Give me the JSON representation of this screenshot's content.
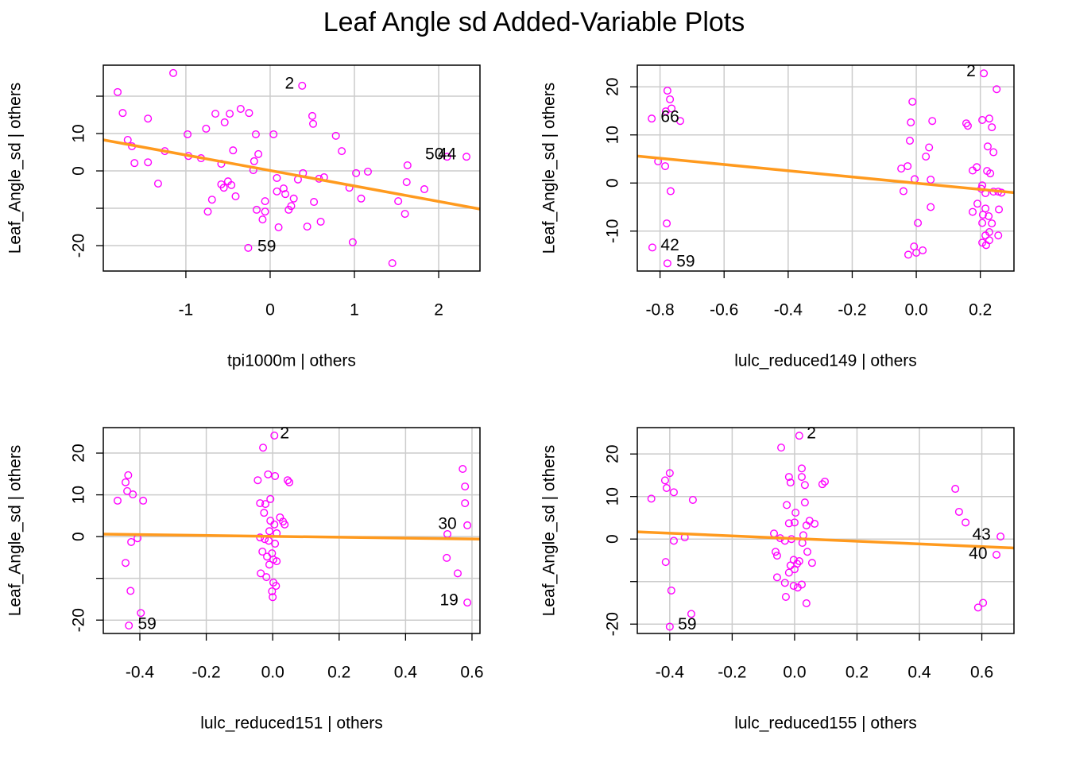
{
  "title": "Leaf Angle sd Added-Variable Plots",
  "chart_data": [
    {
      "type": "scatter",
      "xlabel": "tpi1000m | others",
      "ylabel": "Leaf_Angle_sd  | others",
      "color": "#ff00ff",
      "grid": true,
      "xlim": [
        -1.98,
        2.49
      ],
      "ylim": [
        -26.8,
        28.3
      ],
      "xticks": [
        -1,
        0,
        1,
        2
      ],
      "yticks": [
        -20,
        {
          "value": -10,
          "label": null
        },
        0,
        10,
        {
          "value": 20,
          "label": null
        }
      ],
      "x": [
        -1.81,
        -1.75,
        -1.15,
        -1.69,
        -1.64,
        -1.45,
        -1.61,
        -1.45,
        -1.33,
        -1.25,
        -0.98,
        -0.97,
        -0.82,
        -0.76,
        -0.74,
        -0.69,
        -0.65,
        -0.58,
        -0.54,
        -0.48,
        -0.58,
        -0.55,
        -0.5,
        -0.46,
        -0.44,
        -0.41,
        -0.35,
        -0.25,
        -0.19,
        -0.2,
        -0.17,
        -0.14,
        -0.16,
        -0.09,
        -0.06,
        -0.06,
        0.04,
        0.08,
        0.08,
        0.1,
        0.16,
        0.18,
        0.22,
        0.25,
        0.28,
        0.33,
        0.38,
        0.39,
        0.44,
        0.5,
        0.51,
        0.52,
        0.6,
        0.58,
        0.64,
        0.78,
        0.85,
        0.94,
        0.98,
        1.02,
        1.08,
        1.16,
        -0.26,
        1.45,
        1.52,
        1.63,
        1.62,
        1.6,
        1.83,
        2.1,
        2.33
      ],
      "y": [
        21.1,
        15.5,
        26.2,
        8.3,
        6.6,
        14.0,
        2.1,
        2.3,
        -3.4,
        5.3,
        9.8,
        4.0,
        3.4,
        11.3,
        -10.9,
        -7.7,
        15.3,
        1.9,
        13.0,
        15.3,
        -3.6,
        -4.5,
        -2.8,
        -3.8,
        5.5,
        -6.8,
        16.6,
        15.5,
        2.6,
        0.2,
        9.8,
        4.5,
        -10.4,
        -13.0,
        -8.1,
        -10.9,
        9.8,
        -1.9,
        -5.5,
        -15.1,
        -4.7,
        -6.2,
        -10.4,
        -9.4,
        -7.4,
        -2.3,
        22.8,
        -0.6,
        -14.9,
        14.7,
        12.6,
        -8.3,
        -13.6,
        -2.1,
        -1.7,
        9.4,
        5.3,
        -4.5,
        -19.1,
        -0.6,
        -7.4,
        -0.2,
        -20.6,
        -24.7,
        -8.1,
        1.5,
        -3.0,
        -11.5,
        -4.9,
        3.8,
        3.8
      ],
      "fit": {
        "color": "#ff9a1e",
        "x": [
          -1.98,
          2.49
        ],
        "y": [
          8.3,
          -10.2
        ]
      },
      "annotations": [
        {
          "text": "2",
          "x": 0.23,
          "y": 23.2
        },
        {
          "text": "59",
          "x": -0.04,
          "y": -20.4
        },
        {
          "text": "50",
          "x": 1.95,
          "y": 4.3
        },
        {
          "text": "44",
          "x": 2.1,
          "y": 4.3
        }
      ]
    },
    {
      "type": "scatter",
      "xlabel": "lulc_reduced149 | others",
      "ylabel": "Leaf_Angle_sd  | others",
      "color": "#ff00ff",
      "grid": true,
      "xlim": [
        -0.871,
        0.305
      ],
      "ylim": [
        -18.3,
        24.5
      ],
      "xticks": [
        -0.8,
        -0.6,
        -0.4,
        -0.2,
        {
          "value": 0,
          "label": "0.0"
        },
        0.2
      ],
      "yticks": [
        -10,
        0,
        10,
        20
      ],
      "x": [
        -0.826,
        -0.777,
        -0.769,
        -0.764,
        -0.782,
        -0.737,
        -0.806,
        -0.784,
        -0.767,
        -0.779,
        -0.824,
        -0.777,
        -0.012,
        -0.017,
        -0.02,
        -0.027,
        -0.047,
        -0.04,
        -0.005,
        0.005,
        -0.007,
        -0.025,
        0,
        0.02,
        0.03,
        0.04,
        0.05,
        0.045,
        0.045,
        0.156,
        0.161,
        0.211,
        0.251,
        0.206,
        0.228,
        0.236,
        0.223,
        0.241,
        0.189,
        0.176,
        0.221,
        0.231,
        0.206,
        0.203,
        0.216,
        0.241,
        0.256,
        0.266,
        0.191,
        0.176,
        0.216,
        0.258,
        0.208,
        0.226,
        0.206,
        0.236,
        0.228,
        0.256,
        0.216,
        0.206,
        0.228,
        0.218
      ],
      "y": [
        13.4,
        19.2,
        17.4,
        15.5,
        14.9,
        12.9,
        4.5,
        3.5,
        -1.7,
        -8.4,
        -13.4,
        -16.7,
        16.9,
        12.6,
        8.8,
        3.5,
        3.0,
        -1.7,
        0.8,
        -8.3,
        -13.2,
        -14.9,
        -14.5,
        -14.0,
        5.5,
        7.4,
        12.9,
        0.7,
        -5.0,
        12.4,
        11.9,
        22.8,
        19.5,
        13.1,
        13.4,
        11.6,
        7.6,
        6.4,
        3.3,
        2.6,
        2.5,
        2.0,
        -0.5,
        -1.2,
        -2.1,
        -1.8,
        -1.8,
        -2.0,
        -4.3,
        -6.0,
        -5.3,
        -5.5,
        -6.6,
        -6.9,
        -8.3,
        -8.4,
        -10.2,
        -10.9,
        -10.9,
        -12.4,
        -11.9,
        -12.9
      ],
      "fit": {
        "color": "#ff9a1e",
        "x": [
          -0.871,
          0.305
        ],
        "y": [
          5.6,
          -2.0
        ]
      },
      "annotations": [
        {
          "text": "66",
          "x": -0.769,
          "y": 13.6
        },
        {
          "text": "42",
          "x": -0.769,
          "y": -13.1
        },
        {
          "text": "59",
          "x": -0.72,
          "y": -16.5
        },
        {
          "text": "2",
          "x": 0.171,
          "y": 23.1
        }
      ]
    },
    {
      "type": "scatter",
      "xlabel": "lulc_reduced151 | others",
      "ylabel": "Leaf_Angle_sd  | others",
      "color": "#ff00ff",
      "grid": true,
      "xlim": [
        -0.51,
        0.624
      ],
      "ylim": [
        -23.2,
        26.1
      ],
      "xticks": [
        -0.4,
        -0.2,
        {
          "value": 0,
          "label": "0.0"
        },
        0.2,
        0.4,
        0.6
      ],
      "yticks": [
        -20,
        {
          "value": -10,
          "label": null
        },
        0,
        10,
        20
      ],
      "x": [
        -0.467,
        -0.435,
        -0.443,
        -0.438,
        -0.421,
        -0.39,
        -0.426,
        -0.407,
        -0.443,
        -0.428,
        -0.397,
        -0.433,
        0.005,
        -0.029,
        -0.045,
        -0.014,
        0.007,
        0.045,
        0.05,
        -0.038,
        -0.022,
        -0.007,
        -0.026,
        0.022,
        0.031,
        0.036,
        -0.007,
        0.005,
        -0.01,
        0.012,
        -0.038,
        -0.024,
        -0.012,
        0.007,
        -0.031,
        -0.002,
        -0.017,
        0.002,
        0.012,
        -0.01,
        -0.036,
        -0.019,
        0.002,
        0.01,
        -0.002,
        0,
        0.572,
        0.579,
        0.579,
        0.586,
        0.526,
        0.524,
        0.557,
        0.586
      ],
      "y": [
        8.6,
        14.7,
        13.0,
        10.9,
        10.1,
        8.6,
        -1.3,
        -0.4,
        -6.3,
        -13.0,
        -18.3,
        -21.3,
        24.2,
        21.3,
        13.5,
        14.9,
        14.5,
        13.5,
        13.0,
        8.0,
        7.8,
        9.0,
        5.7,
        4.6,
        3.6,
        2.9,
        3.8,
        2.9,
        1.3,
        0.8,
        -0.2,
        -0.6,
        -1.0,
        -1.7,
        -3.6,
        -4.0,
        -4.8,
        -5.5,
        -5.9,
        -6.7,
        -8.8,
        -9.7,
        -11.0,
        -11.8,
        -13.1,
        -14.5,
        16.2,
        12.0,
        8.0,
        2.7,
        0.6,
        -5.1,
        -8.8,
        -15.8
      ],
      "fit": {
        "color": "#ff9a1e",
        "x": [
          -0.51,
          0.624
        ],
        "y": [
          0.6,
          -0.6
        ]
      },
      "annotations": [
        {
          "text": "2",
          "x": 0.036,
          "y": 24.6
        },
        {
          "text": "59",
          "x": -0.378,
          "y": -21.1
        },
        {
          "text": "30",
          "x": 0.526,
          "y": 2.9
        },
        {
          "text": "19",
          "x": 0.531,
          "y": -15.4
        }
      ]
    },
    {
      "type": "scatter",
      "xlabel": "lulc_reduced155 | others",
      "ylabel": "Leaf_Angle_sd  | others",
      "color": "#ff00ff",
      "grid": true,
      "xlim": [
        -0.504,
        0.703
      ],
      "ylim": [
        -22.2,
        26.2
      ],
      "xticks": [
        -0.4,
        -0.2,
        {
          "value": 0,
          "label": "0.0"
        },
        0.2,
        0.4,
        0.6
      ],
      "yticks": [
        -20,
        {
          "value": -10,
          "label": null
        },
        0,
        10,
        20
      ],
      "x": [
        -0.459,
        -0.415,
        -0.41,
        -0.4,
        -0.387,
        -0.326,
        -0.387,
        -0.352,
        -0.413,
        -0.395,
        -0.331,
        -0.4,
        0.015,
        -0.043,
        -0.018,
        0.023,
        0.023,
        -0.013,
        0.033,
        0.089,
        0.097,
        -0.025,
        0.033,
        0.003,
        0.048,
        0.064,
        -0.018,
        0,
        0.038,
        -0.066,
        -0.046,
        -0.031,
        -0.01,
        0.028,
        0.025,
        -0.061,
        -0.056,
        0.041,
        -0.003,
        0.015,
        -0.013,
        0.008,
        0.056,
        -0.018,
        0,
        -0.056,
        -0.031,
        -0.003,
        0.01,
        0.023,
        -0.028,
        0.038,
        0.515,
        0.527,
        0.548,
        0.66,
        0.647,
        0.588,
        0.604
      ],
      "y": [
        9.5,
        13.8,
        12.0,
        15.5,
        11.0,
        9.2,
        -0.4,
        0.4,
        -5.4,
        -12.1,
        -17.6,
        -20.6,
        24.3,
        21.5,
        14.6,
        16.6,
        14.6,
        13.3,
        12.7,
        12.9,
        13.5,
        8.0,
        8.6,
        6.2,
        4.3,
        3.6,
        3.7,
        3.9,
        3.2,
        1.3,
        0.2,
        -0.4,
        0,
        0.9,
        -0.9,
        -3.0,
        -3.9,
        -3.0,
        -4.9,
        -5.2,
        -6.2,
        -5.8,
        -5.6,
        -7.9,
        -7.1,
        -9.0,
        -10.3,
        -11.0,
        -11.4,
        -10.7,
        -13.6,
        -15.1,
        11.8,
        6.4,
        3.9,
        0.6,
        -3.7,
        -16.1,
        -15.0
      ],
      "fit": {
        "color": "#ff9a1e",
        "x": [
          -0.504,
          0.703
        ],
        "y": [
          1.7,
          -2.1
        ]
      },
      "annotations": [
        {
          "text": "2",
          "x": 0.054,
          "y": 24.7
        },
        {
          "text": "59",
          "x": -0.344,
          "y": -20.2
        },
        {
          "text": "43",
          "x": 0.599,
          "y": 0.9
        },
        {
          "text": "40",
          "x": 0.588,
          "y": -3.6
        }
      ]
    }
  ]
}
